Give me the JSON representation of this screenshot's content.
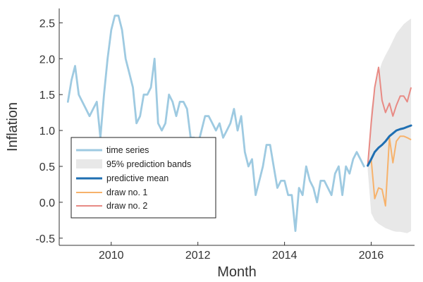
{
  "chart_data": {
    "type": "line",
    "xlabel": "Month",
    "ylabel": "Inflation",
    "xlim": [
      2008.8,
      2017.0
    ],
    "ylim": [
      -0.6,
      2.7
    ],
    "x_ticks": [
      2010,
      2012,
      2014,
      2016
    ],
    "x_tick_labels": [
      "2010",
      "2012",
      "2014",
      "2016"
    ],
    "y_ticks": [
      -0.5,
      0.0,
      0.5,
      1.0,
      1.5,
      2.0,
      2.5
    ],
    "y_tick_labels": [
      "-0.5",
      "0.0",
      "0.5",
      "1.0",
      "1.5",
      "2.0",
      "2.5"
    ],
    "grid": false,
    "legend_position": "lower-left",
    "legend": [
      "time series",
      "95% prediction bands",
      "predictive mean",
      "draw no. 1",
      "draw no. 2"
    ],
    "colors": {
      "time_series": "#9ecae1",
      "band": "#e8e8e8",
      "mean": "#1f6fb2",
      "draw1": "#f7b26b",
      "draw2": "#e88a84"
    },
    "time_series": {
      "name": "time series",
      "start": 2009.0,
      "step": 0.0833333,
      "values": [
        1.4,
        1.7,
        1.9,
        1.5,
        1.4,
        1.3,
        1.2,
        1.3,
        1.4,
        0.9,
        1.5,
        2.0,
        2.4,
        2.6,
        2.6,
        2.4,
        2.0,
        1.8,
        1.6,
        1.1,
        1.2,
        1.5,
        1.5,
        1.6,
        2.0,
        1.1,
        1.0,
        1.1,
        1.5,
        1.4,
        1.2,
        1.4,
        1.4,
        1.3,
        0.9,
        0.9,
        0.8,
        1.0,
        1.2,
        1.2,
        1.1,
        1.0,
        1.1,
        0.9,
        1.0,
        1.1,
        1.3,
        1.0,
        1.2,
        0.7,
        0.5,
        0.6,
        0.1,
        0.3,
        0.5,
        0.8,
        0.8,
        0.5,
        0.2,
        0.3,
        0.3,
        0.1,
        0.1,
        -0.4,
        0.2,
        0.1,
        0.5,
        0.3,
        0.2,
        0.0,
        0.3,
        0.3,
        0.2,
        0.1,
        0.4,
        0.5,
        0.1,
        0.5,
        0.4,
        0.6,
        0.7,
        0.6,
        0.5
      ]
    },
    "forecast_x": [
      2015.92,
      2016.0,
      2016.08,
      2016.17,
      2016.25,
      2016.33,
      2016.42,
      2016.5,
      2016.58,
      2016.67,
      2016.75,
      2016.83,
      2016.92
    ],
    "band_upper": [
      0.55,
      1.3,
      1.6,
      1.8,
      1.95,
      2.05,
      2.15,
      2.25,
      2.35,
      2.42,
      2.48,
      2.52,
      2.56
    ],
    "band_lower": [
      0.45,
      -0.15,
      -0.25,
      -0.3,
      -0.33,
      -0.36,
      -0.38,
      -0.4,
      -0.41,
      -0.41,
      -0.42,
      -0.43,
      -0.4
    ],
    "predictive_mean": [
      0.51,
      0.6,
      0.7,
      0.76,
      0.8,
      0.85,
      0.92,
      0.96,
      1.0,
      1.02,
      1.03,
      1.05,
      1.07
    ],
    "draw1": [
      0.51,
      0.6,
      0.05,
      0.2,
      0.18,
      -0.05,
      0.9,
      0.55,
      0.85,
      0.92,
      0.92,
      0.9,
      0.87
    ],
    "draw2": [
      0.51,
      1.1,
      1.6,
      1.88,
      1.42,
      1.25,
      1.38,
      1.2,
      1.35,
      1.48,
      1.48,
      1.4,
      1.6
    ]
  }
}
